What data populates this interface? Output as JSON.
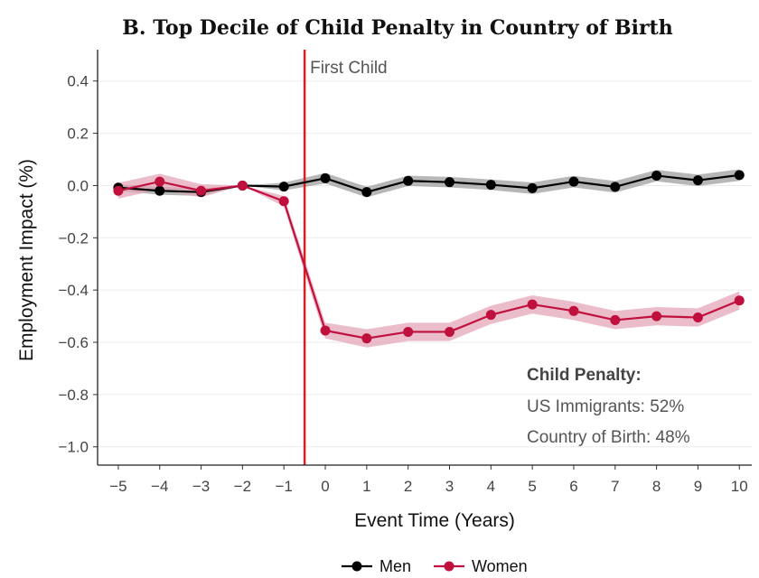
{
  "chart_data": {
    "type": "line",
    "title": "B. Top Decile of Child Penalty in Country of Birth",
    "xlabel": "Event Time (Years)",
    "ylabel": "Employment Impact (%)",
    "x": [
      -5,
      -4,
      -3,
      -2,
      -1,
      0,
      1,
      2,
      3,
      4,
      5,
      6,
      7,
      8,
      9,
      10
    ],
    "xlim": [
      -5.5,
      10.3
    ],
    "ylim": [
      -1.07,
      0.52
    ],
    "yticks": [
      0.4,
      0.2,
      0.0,
      -0.2,
      -0.4,
      -0.6,
      -0.8,
      -1.0
    ],
    "ytick_labels": [
      "0.4",
      "0.2",
      "0.0",
      "−0.2",
      "−0.4",
      "−0.6",
      "−0.8",
      "−1.0"
    ],
    "xtick_labels": [
      "−5",
      "−4",
      "−3",
      "−2",
      "−1",
      "0",
      "1",
      "2",
      "3",
      "4",
      "5",
      "6",
      "7",
      "8",
      "9",
      "10"
    ],
    "grid": true,
    "series": [
      {
        "name": "Men",
        "color": "#000000",
        "band_color": "#999999",
        "values": [
          -0.008,
          -0.02,
          -0.025,
          0.0,
          -0.004,
          0.028,
          -0.025,
          0.018,
          0.013,
          0.003,
          -0.01,
          0.015,
          -0.005,
          0.038,
          0.02,
          0.04
        ],
        "ci_half": [
          0.012,
          0.015,
          0.015,
          0.0,
          0.015,
          0.02,
          0.02,
          0.02,
          0.02,
          0.02,
          0.022,
          0.022,
          0.022,
          0.022,
          0.022,
          0.022
        ]
      },
      {
        "name": "Women",
        "color": "#c0103e",
        "band_color": "#e2a0b2",
        "values": [
          -0.02,
          0.015,
          -0.02,
          0.0,
          -0.06,
          -0.555,
          -0.585,
          -0.56,
          -0.56,
          -0.495,
          -0.455,
          -0.48,
          -0.515,
          -0.5,
          -0.505,
          -0.44
        ],
        "ci_half": [
          0.03,
          0.03,
          0.025,
          0.0,
          0.02,
          0.03,
          0.035,
          0.035,
          0.035,
          0.035,
          0.035,
          0.035,
          0.035,
          0.035,
          0.035,
          0.035
        ]
      }
    ],
    "vline": {
      "x": -0.5,
      "label": "First Child",
      "color": "#d62020"
    },
    "annotation": {
      "heading": "Child Penalty:",
      "line1": "US Immigrants: 52%",
      "line2": "Country of Birth: 48%"
    },
    "legend": {
      "position": "bottom"
    }
  }
}
